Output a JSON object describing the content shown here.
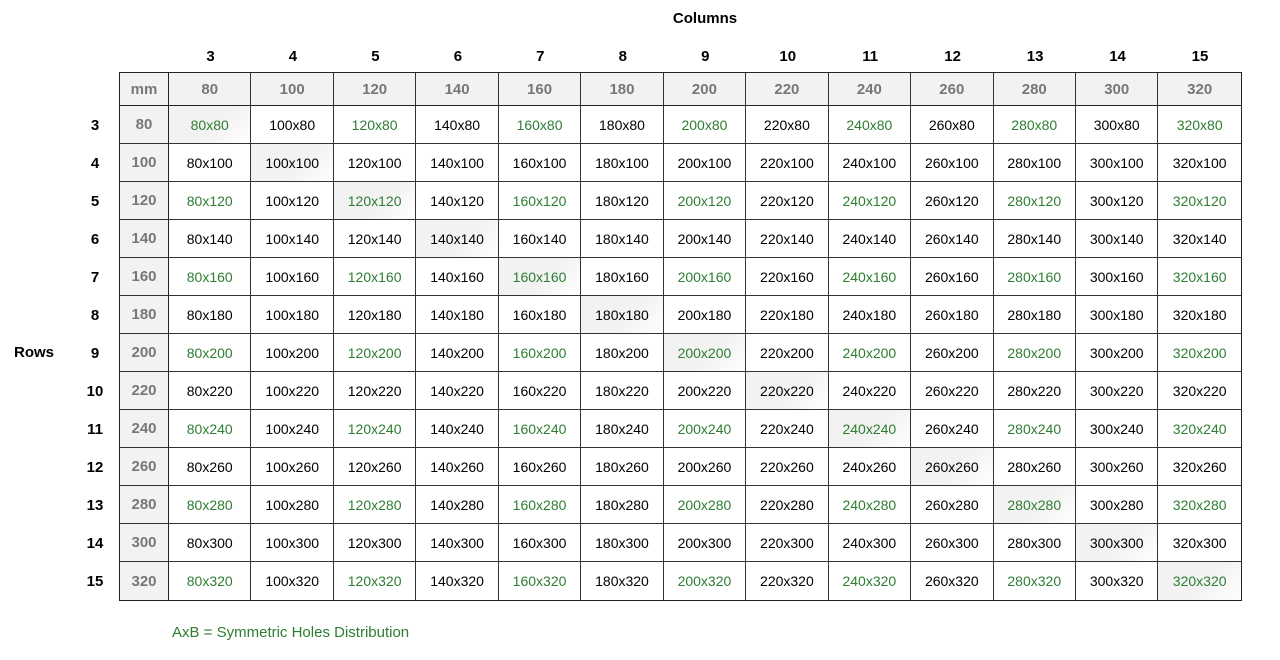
{
  "columns_title": "Columns",
  "rows_title": "Rows",
  "unit_label": "mm",
  "column_numbers": [
    "3",
    "4",
    "5",
    "6",
    "7",
    "8",
    "9",
    "10",
    "11",
    "12",
    "13",
    "14",
    "15"
  ],
  "row_numbers": [
    "3",
    "4",
    "5",
    "6",
    "7",
    "8",
    "9",
    "10",
    "11",
    "12",
    "13",
    "14",
    "15"
  ],
  "sizes_mm": [
    "80",
    "100",
    "120",
    "140",
    "160",
    "180",
    "200",
    "220",
    "240",
    "260",
    "280",
    "300",
    "320"
  ],
  "symmetric_color": "#2e7d32",
  "legend": "AxB = Symmetric Holes Distribution"
}
